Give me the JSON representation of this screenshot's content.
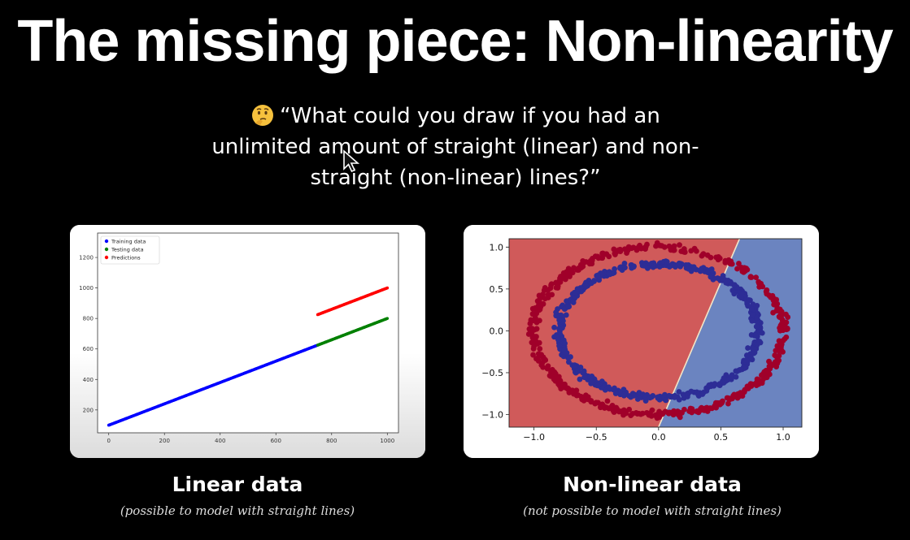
{
  "slide": {
    "title": "The missing piece: Non-linearity",
    "quote": "“What could you draw if you had an unlimited amount of straight (linear) and non-straight (non-linear) lines?”",
    "quote_lines": [
      "“What could you draw if you had an",
      "unlimited amount of straight (linear) and non-",
      "straight (non-linear) lines?”"
    ],
    "emoji": "thinking-face-icon"
  },
  "left": {
    "caption": "Linear data",
    "subcaption": "(possible to model with straight lines)"
  },
  "right": {
    "caption": "Non-linear data",
    "subcaption": "(not possible to model with straight lines)"
  },
  "chart_data": [
    {
      "type": "scatter",
      "title": "",
      "xlabel": "",
      "ylabel": "",
      "xlim": [
        -40,
        1040
      ],
      "ylim": [
        50,
        1360
      ],
      "xticks": [
        0,
        200,
        400,
        600,
        800,
        1000
      ],
      "yticks": [
        200,
        400,
        600,
        800,
        1000,
        1200
      ],
      "legend": "top-left",
      "series": [
        {
          "name": "Training data",
          "color": "#0000ff",
          "x_range": [
            0,
            750
          ],
          "slope": 0.7,
          "intercept": 100
        },
        {
          "name": "Testing data",
          "color": "#008000",
          "x_range": [
            750,
            1000
          ],
          "slope": 0.7,
          "intercept": 100
        },
        {
          "name": "Predictions",
          "color": "#ff0000",
          "x_range": [
            750,
            1000
          ],
          "slope": 0.7,
          "intercept": 300
        }
      ]
    },
    {
      "type": "scatter",
      "title": "",
      "xlabel": "",
      "ylabel": "",
      "xlim": [
        -1.2,
        1.15
      ],
      "ylim": [
        -1.15,
        1.1
      ],
      "xticks": [
        -1.0,
        -0.5,
        0.0,
        0.5,
        1.0
      ],
      "yticks": [
        -1.0,
        -0.5,
        0.0,
        0.5,
        1.0
      ],
      "xtick_labels": [
        "−1.0",
        "−0.5",
        "0.0",
        "0.5",
        "1.0"
      ],
      "ytick_labels": [
        "−1.0",
        "−0.5",
        "0.0",
        "0.5",
        "1.0"
      ],
      "decision_boundary": {
        "points": [
          [
            0.0,
            -1.15
          ],
          [
            0.65,
            1.1
          ]
        ],
        "left_color": "#d05a5a",
        "right_color": "#6b84c0"
      },
      "series": [
        {
          "name": "",
          "color": "#a0002a",
          "radius": 1.0
        },
        {
          "name": "",
          "color": "#2d2d96",
          "radius": 0.8
        }
      ]
    }
  ]
}
